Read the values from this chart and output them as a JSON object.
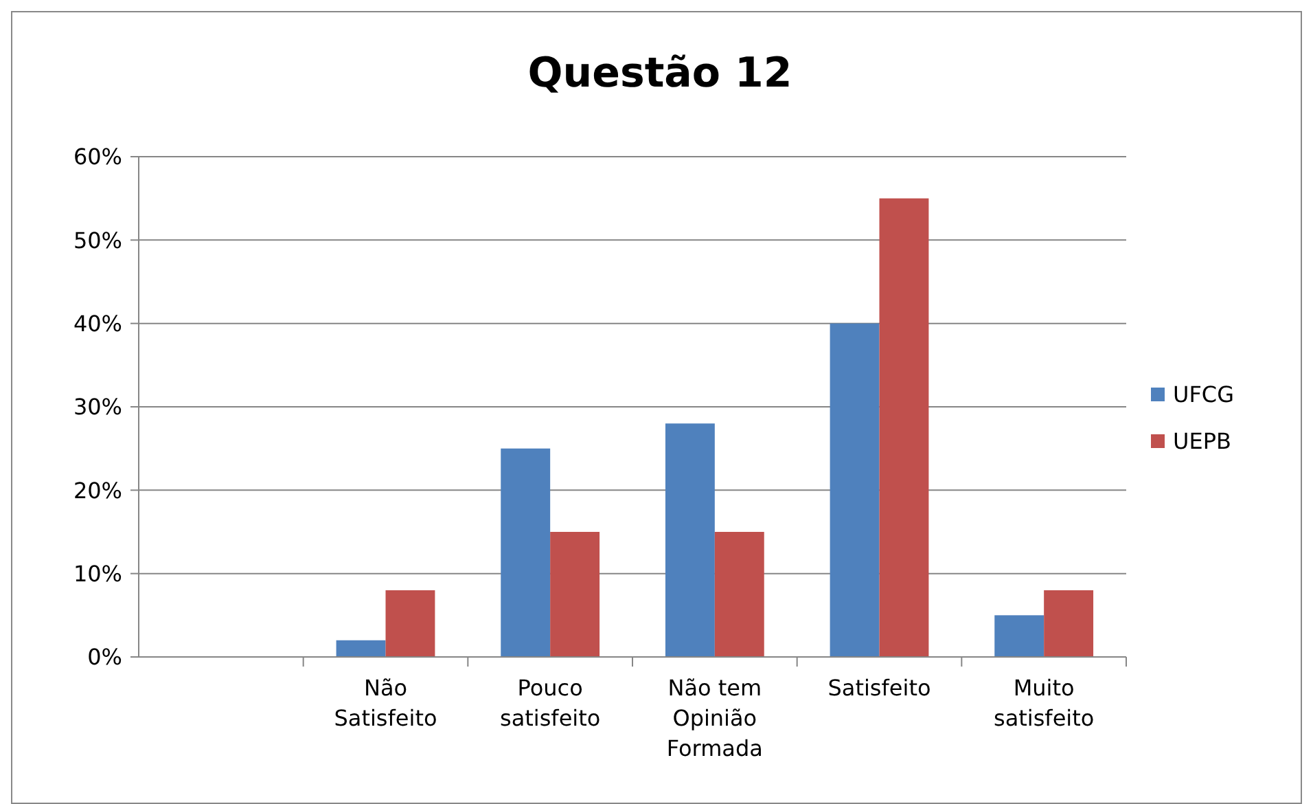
{
  "chart_data": {
    "type": "bar",
    "title": "Questão 12",
    "categories": [
      null,
      "Não Satisfeito",
      "Pouco satisfeito",
      "Não tem Opinião Formada",
      "Satisfeito",
      "Muito satisfeito"
    ],
    "series": [
      {
        "name": "UFCG",
        "color": "#4f81bd",
        "values": [
          null,
          2,
          25,
          28,
          40,
          5
        ]
      },
      {
        "name": "UEPB",
        "color": "#c0504d",
        "values": [
          null,
          8,
          15,
          15,
          55,
          8
        ]
      }
    ],
    "ylim": [
      0,
      60
    ],
    "yticks": [
      {
        "value": 0,
        "label": "0%"
      },
      {
        "value": 10,
        "label": "10%"
      },
      {
        "value": 20,
        "label": "20%"
      },
      {
        "value": 30,
        "label": "30%"
      },
      {
        "value": 40,
        "label": "40%"
      },
      {
        "value": 50,
        "label": "50%"
      },
      {
        "value": 60,
        "label": "60%"
      }
    ],
    "grid": "y",
    "legend": "right"
  }
}
